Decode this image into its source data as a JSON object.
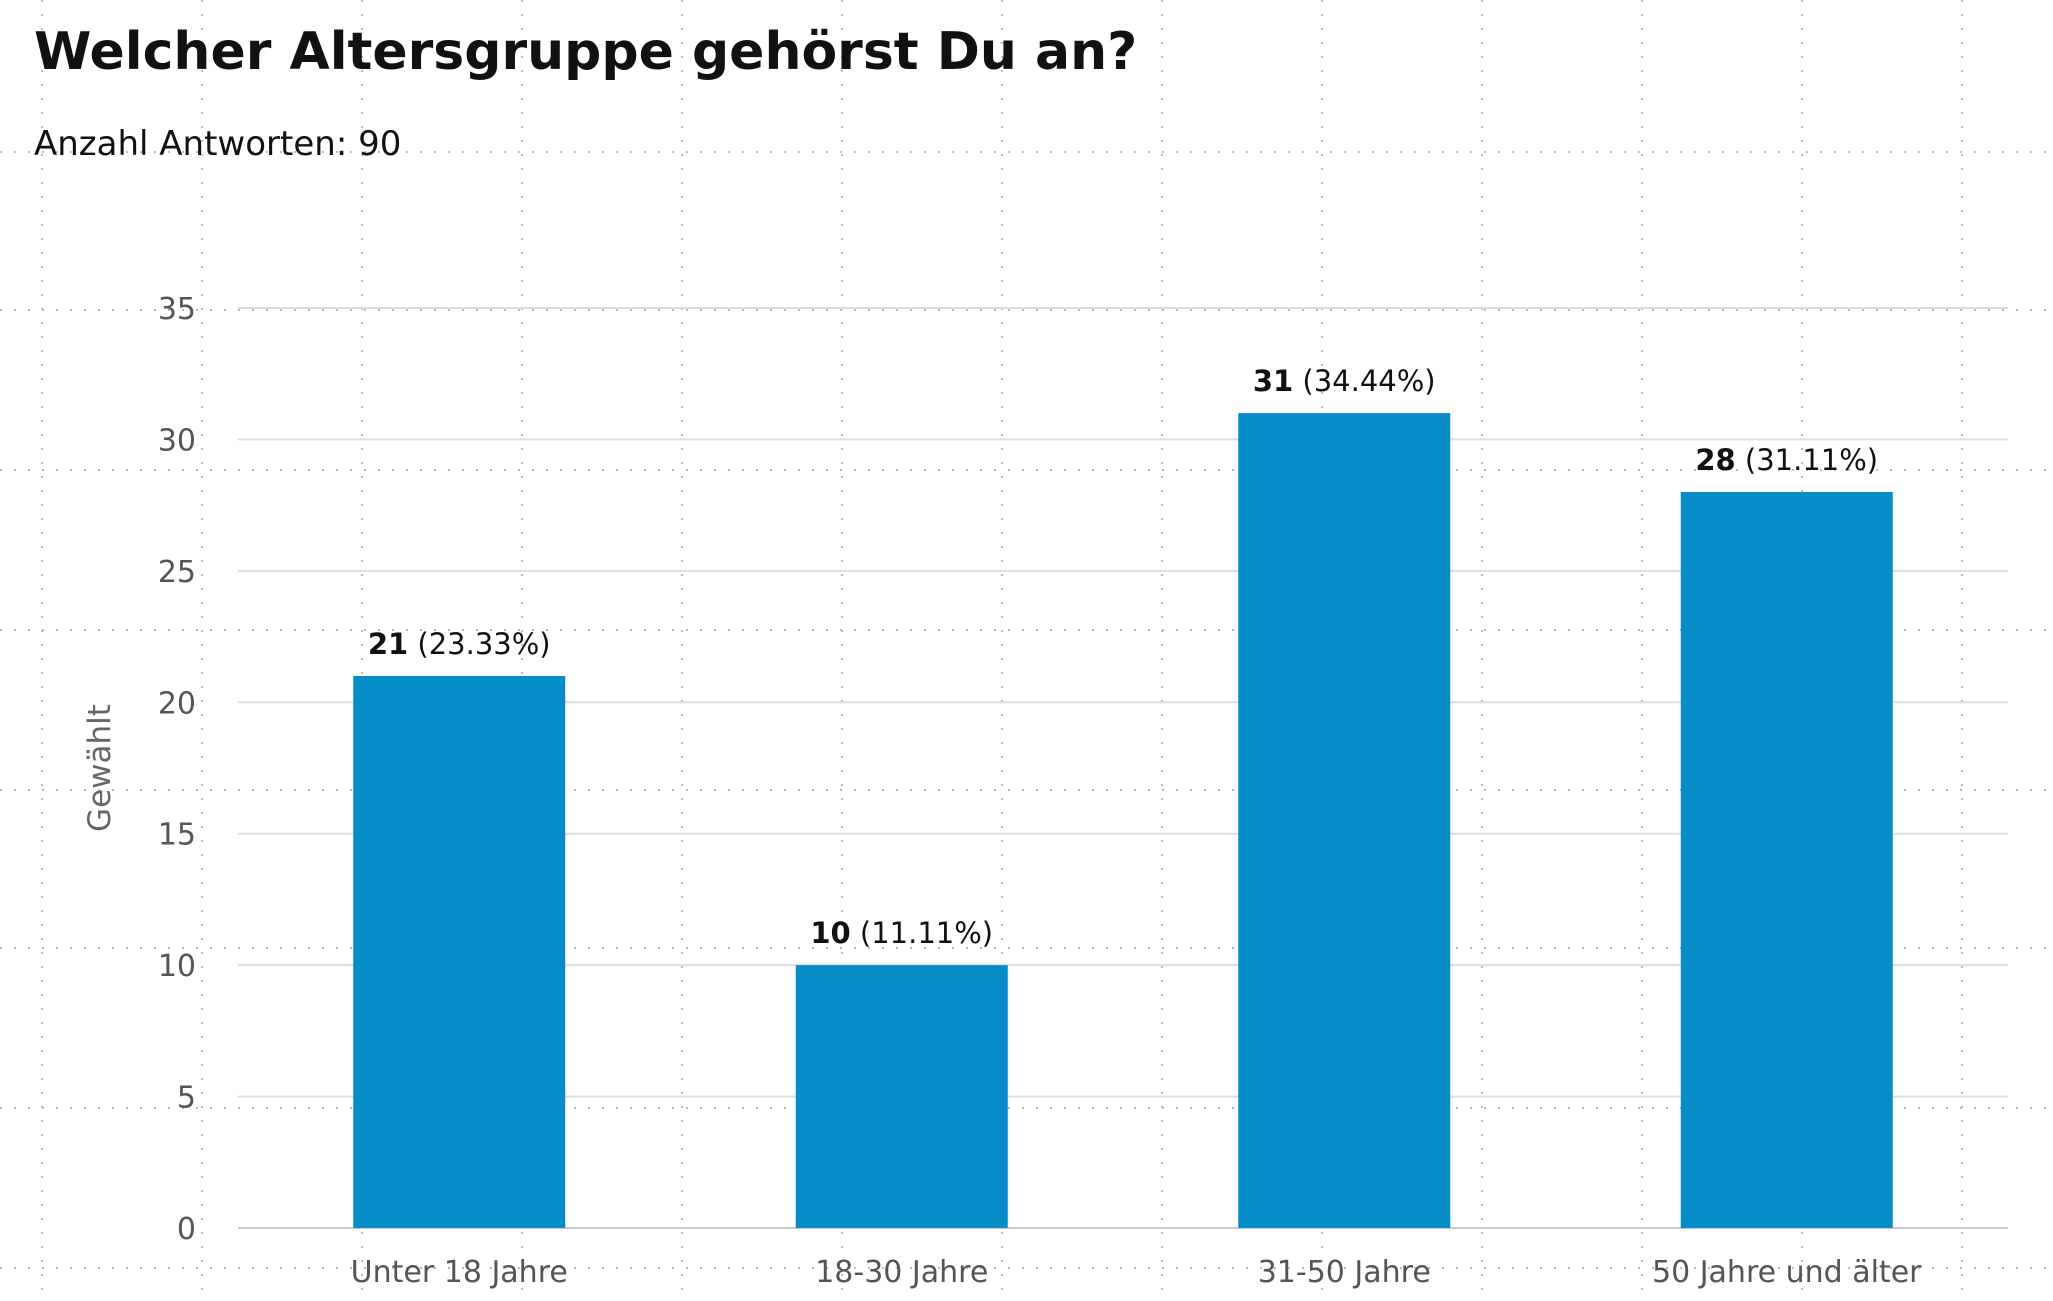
{
  "header": {
    "title": "Welcher Altersgruppe gehörst Du an?",
    "subtitle": "Anzahl Antworten: 90"
  },
  "colors": {
    "bar": "#068dc8",
    "grid": "#dddddd",
    "axis_text": "#555555"
  },
  "chart_data": {
    "type": "bar",
    "categories": [
      "Unter 18 Jahre",
      "18-30 Jahre",
      "31-50 Jahre",
      "50 Jahre und älter"
    ],
    "values": [
      21,
      10,
      31,
      28
    ],
    "percent_labels": [
      "(23.33%)",
      "(11.11%)",
      "(34.44%)",
      "(31.11%)"
    ],
    "ylabel": "Gewählt",
    "xlabel": "",
    "ylim": [
      0,
      35
    ],
    "yticks": [
      0,
      5,
      10,
      15,
      20,
      25,
      30,
      35
    ],
    "grid": true,
    "legend": "none"
  }
}
